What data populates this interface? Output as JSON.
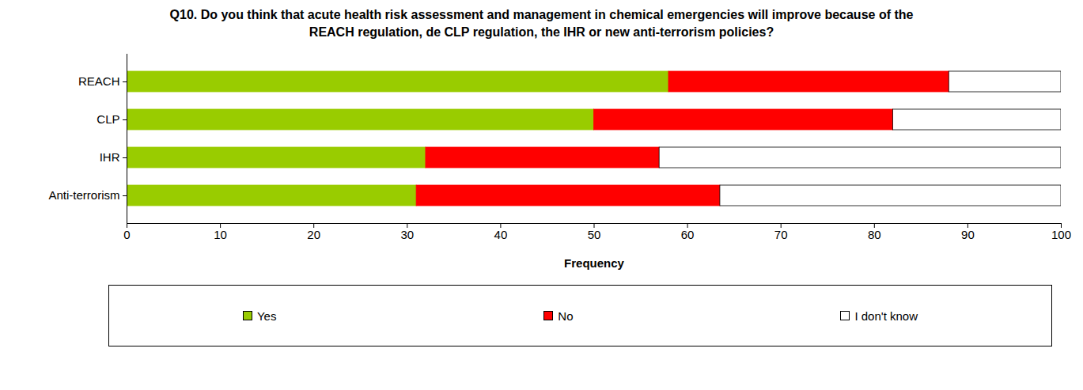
{
  "chart_data": {
    "type": "bar",
    "orientation": "horizontal",
    "stacked": true,
    "title": "Q10. Do you think that acute health risk assessment and management in chemical emergencies will improve because of the REACH regulation, de CLP regulation, the IHR or new anti-terrorism policies?",
    "x_label": "Frequency",
    "categories": [
      "REACH",
      "CLP",
      "IHR",
      "Anti-terrorism"
    ],
    "series": [
      {
        "name": "Yes",
        "color": "#99cc00",
        "values": [
          58,
          50,
          32,
          31
        ]
      },
      {
        "name": "No",
        "color": "#ff0000",
        "values": [
          30,
          32,
          25,
          32.5
        ]
      },
      {
        "name": "I don't know",
        "color": "#ffffff",
        "values": [
          12,
          18,
          43,
          36.5
        ]
      }
    ],
    "xlim": [
      0,
      100
    ],
    "xticks": [
      0,
      10,
      20,
      30,
      40,
      50,
      60,
      70,
      80,
      90,
      100
    ],
    "grid": false,
    "legend": "bottom"
  }
}
